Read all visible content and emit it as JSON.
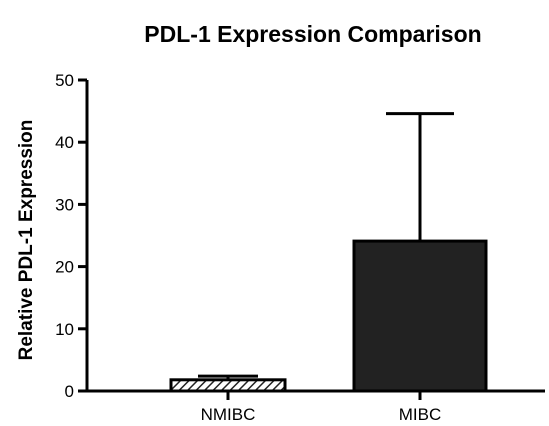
{
  "chart_data": {
    "type": "bar",
    "title": "PDL-1 Expression Comparison",
    "xlabel": "",
    "ylabel": "Relative PDL-1 Expression",
    "categories": [
      "NMIBC",
      "MIBC"
    ],
    "values": [
      1.8,
      24.1
    ],
    "error_upper": [
      2.4,
      44.6
    ],
    "yticks": [
      "0",
      "10",
      "20",
      "30",
      "40",
      "50"
    ],
    "ylim": [
      0,
      50
    ],
    "grid": false,
    "legend": "none",
    "bar_styles": [
      "hatched",
      "solid"
    ],
    "colors": {
      "bar_fill": "#222222",
      "axis": "#000000",
      "background": "#ffffff"
    }
  }
}
